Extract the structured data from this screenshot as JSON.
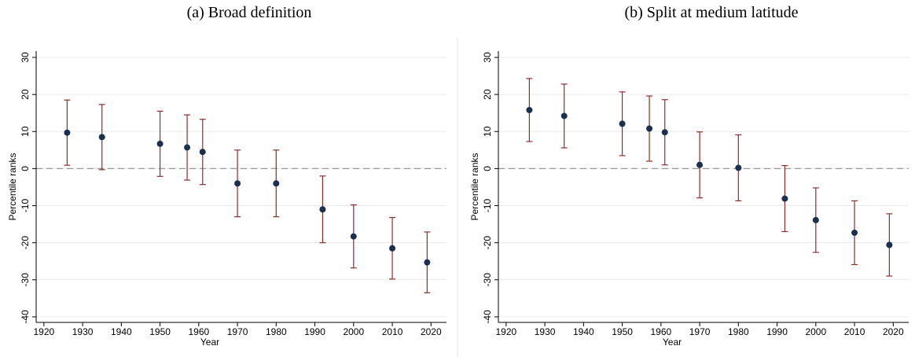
{
  "chart_data": [
    {
      "type": "errorbar",
      "title": "(a) Broad definition",
      "xlabel": "Year",
      "ylabel": "Percentile ranks",
      "x": [
        1926,
        1935,
        1950,
        1957,
        1961,
        1970,
        1980,
        1992,
        2000,
        2010,
        2019
      ],
      "values": [
        9.7,
        8.5,
        6.7,
        5.7,
        4.5,
        -4,
        -4,
        -11,
        -18.3,
        -21.5,
        -25.3
      ],
      "errors": [
        8.8,
        8.8,
        8.8,
        8.8,
        8.8,
        9,
        9,
        9,
        8.5,
        8.3,
        8.2
      ],
      "color": "#1c2f4f",
      "error_color": "#8b2e2e",
      "xlim": [
        1918,
        2024
      ],
      "ylim": [
        -41.5,
        31.7
      ],
      "xticks": [
        1920,
        1930,
        1940,
        1950,
        1960,
        1970,
        1980,
        1990,
        2000,
        2010,
        2020
      ],
      "yticks": [
        -40,
        -30,
        -20,
        -10,
        0,
        10,
        20,
        30
      ],
      "grid": true,
      "reference_line": 0
    },
    {
      "type": "errorbar",
      "title": "(b) Split at medium latitude",
      "xlabel": "Year",
      "ylabel": "Percentile ranks",
      "x": [
        1926,
        1935,
        1950,
        1957,
        1961,
        1970,
        1980,
        1992,
        2000,
        2010,
        2019
      ],
      "values": [
        15.8,
        14.2,
        12.1,
        10.8,
        9.8,
        1,
        0.2,
        -8.1,
        -13.9,
        -17.3,
        -20.6
      ],
      "errors": [
        8.5,
        8.6,
        8.6,
        8.8,
        8.8,
        8.9,
        8.9,
        8.9,
        8.7,
        8.6,
        8.4
      ],
      "color": "#1c2f4f",
      "error_color": "#8b2e2e",
      "xlim": [
        1918,
        2024
      ],
      "ylim": [
        -41.5,
        31.7
      ],
      "xticks": [
        1920,
        1930,
        1940,
        1950,
        1960,
        1970,
        1980,
        1990,
        2000,
        2010,
        2020
      ],
      "yticks": [
        -40,
        -30,
        -20,
        -10,
        0,
        10,
        20,
        30
      ],
      "grid": true,
      "reference_line": 0
    }
  ]
}
